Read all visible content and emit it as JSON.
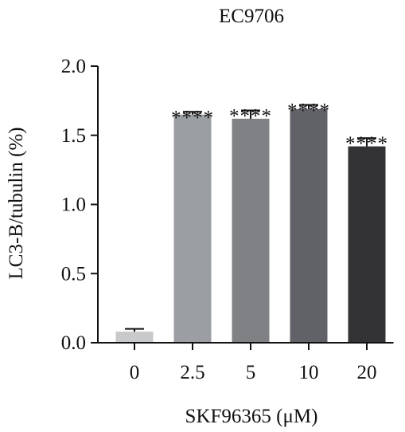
{
  "chart_data": {
    "type": "bar",
    "title": "EC9706",
    "xlabel": "SKF96365 (μM)",
    "ylabel": "LC3-B/tubulin (%)",
    "ylim": [
      0,
      2.0
    ],
    "yticks": [
      "0.0",
      "0.5",
      "1.0",
      "1.5",
      "2.0"
    ],
    "categories": [
      "0",
      "2.5",
      "5",
      "10",
      "20"
    ],
    "values": [
      0.08,
      1.65,
      1.62,
      1.69,
      1.42
    ],
    "errors": [
      0.02,
      0.02,
      0.06,
      0.03,
      0.06
    ],
    "significance": [
      "",
      "****",
      "****",
      "****",
      "****"
    ],
    "colors": [
      "#c8c9cb",
      "#9b9ea2",
      "#808184",
      "#616267",
      "#333335"
    ],
    "grid": false,
    "legend": "none"
  }
}
